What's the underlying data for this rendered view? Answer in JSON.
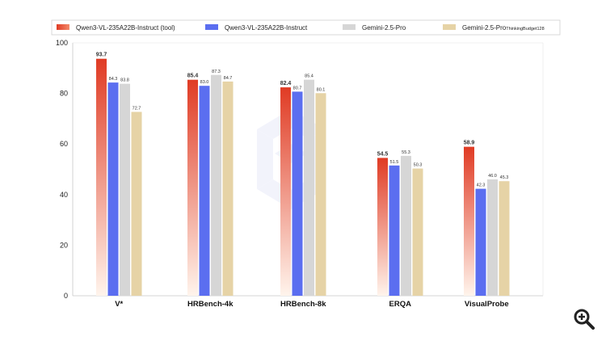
{
  "chart_data": {
    "type": "bar",
    "categories": [
      "V*",
      "HRBench-4k",
      "HRBench-8k",
      "ERQA",
      "VisualProbe"
    ],
    "series": [
      {
        "name": "Qwen3-VL-235A22B-Instruct (tool)",
        "values": [
          93.7,
          85.4,
          82.4,
          54.5,
          58.9
        ]
      },
      {
        "name": "Qwen3-VL-235A22B-Instruct",
        "values": [
          84.3,
          83.0,
          80.7,
          51.5,
          42.3
        ]
      },
      {
        "name": "Gemini-2.5-Pro",
        "values": [
          83.8,
          87.3,
          85.4,
          55.3,
          46.0
        ]
      },
      {
        "name": "Gemini-2.5-Pro",
        "name_suffix": "ThinkingBudget128",
        "values": [
          72.7,
          84.7,
          80.1,
          50.3,
          45.3
        ]
      }
    ],
    "value_labels": [
      [
        "93.7",
        "84.3",
        "83.8",
        "72.7"
      ],
      [
        "85.4",
        "83.0",
        "87.3",
        "84.7"
      ],
      [
        "82.4",
        "80.7",
        "85.4",
        "80.1"
      ],
      [
        "54.5",
        "51.5",
        "55.3",
        "50.3"
      ],
      [
        "58.9",
        "42.3",
        "46.0",
        "45.3"
      ]
    ],
    "yticks": [
      "0",
      "20",
      "40",
      "60",
      "80",
      "100"
    ],
    "ylim": [
      0,
      100
    ],
    "title": "",
    "xlabel": "",
    "ylabel": "",
    "legend_placement": "top",
    "grid": false,
    "colors": {
      "tool_top": "#e03b24",
      "tool_bottom": "#fff4ec",
      "tool_label": "#e03b24",
      "instruct": "#5b6ef0",
      "gemini": "#d6d6d6",
      "gemini_budget": "#e6d3a6"
    }
  },
  "controls": {
    "zoom_icon": "zoom-in-icon"
  }
}
